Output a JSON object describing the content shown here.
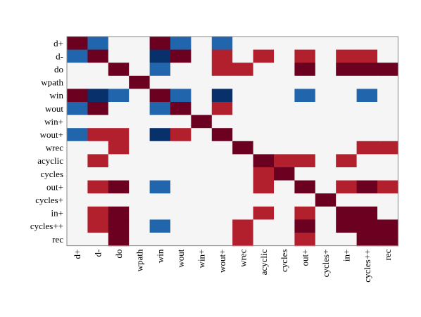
{
  "chart_data": {
    "type": "heatmap",
    "title": "",
    "xlabel": "",
    "ylabel": "",
    "labels": [
      "d+",
      "d-",
      "do",
      "wpath",
      "win",
      "wout",
      "win+",
      "wout+",
      "wrec",
      "acyclic",
      "cycles",
      "out+",
      "cycles+",
      "in+",
      "cycles++",
      "rec"
    ],
    "value_range": [
      -1,
      1
    ],
    "palette": {
      "strong_positive": "#6b0021",
      "positive": "#b2202e",
      "negative": "#2166ac",
      "strong_negative": "#08306b",
      "neutral": "#f5f5f5",
      "border": "#888888"
    },
    "matrix": [
      [
        1,
        -0.6,
        0,
        0,
        1,
        -0.6,
        0,
        -0.6,
        0,
        0,
        0,
        0,
        0,
        0,
        0,
        0
      ],
      [
        -0.6,
        1,
        0,
        0,
        -1,
        1,
        0,
        0.6,
        0,
        0.6,
        0,
        0.6,
        0,
        0.6,
        0.6,
        0
      ],
      [
        0,
        0,
        1,
        0,
        -0.6,
        0,
        0,
        0.6,
        0.6,
        0,
        0,
        1,
        0,
        1,
        1,
        1
      ],
      [
        0,
        0,
        0,
        1,
        0,
        0,
        0,
        0,
        0,
        0,
        0,
        0,
        0,
        0,
        0,
        0
      ],
      [
        1,
        -1,
        -0.6,
        0,
        1,
        -0.6,
        0,
        -1,
        0,
        0,
        0,
        -0.6,
        0,
        0,
        -0.6,
        0
      ],
      [
        -0.6,
        1,
        0,
        0,
        -0.6,
        1,
        0,
        0.6,
        0,
        0,
        0,
        0,
        0,
        0,
        0,
        0
      ],
      [
        0,
        0,
        0,
        0,
        0,
        0,
        1,
        0,
        0,
        0,
        0,
        0,
        0,
        0,
        0,
        0
      ],
      [
        -0.6,
        0.6,
        0.6,
        0,
        -1,
        0.6,
        0,
        1,
        0,
        0,
        0,
        0,
        0,
        0,
        0,
        0
      ],
      [
        0,
        0,
        0.6,
        0,
        0,
        0,
        0,
        0,
        1,
        0,
        0,
        0,
        0,
        0,
        0.6,
        0.6
      ],
      [
        0,
        0.6,
        0,
        0,
        0,
        0,
        0,
        0,
        0,
        1,
        0.6,
        0.6,
        0,
        0.6,
        0,
        0
      ],
      [
        0,
        0,
        0,
        0,
        0,
        0,
        0,
        0,
        0,
        0.6,
        1,
        0,
        0,
        0,
        0,
        0
      ],
      [
        0,
        0.6,
        1,
        0,
        -0.6,
        0,
        0,
        0,
        0,
        0.6,
        0,
        1,
        0,
        0.6,
        1,
        0.6
      ],
      [
        0,
        0,
        0,
        0,
        0,
        0,
        0,
        0,
        0,
        0,
        0,
        0,
        1,
        0,
        0,
        0
      ],
      [
        0,
        0.6,
        1,
        0,
        0,
        0,
        0,
        0,
        0,
        0.6,
        0,
        0.6,
        0,
        1,
        1,
        0
      ],
      [
        0,
        0.6,
        1,
        0,
        -0.6,
        0,
        0,
        0,
        0.6,
        0,
        0,
        1,
        0,
        1,
        1,
        1
      ],
      [
        0,
        0,
        1,
        0,
        0,
        0,
        0,
        0,
        0.6,
        0,
        0,
        0.6,
        0,
        0,
        1,
        1
      ]
    ]
  }
}
